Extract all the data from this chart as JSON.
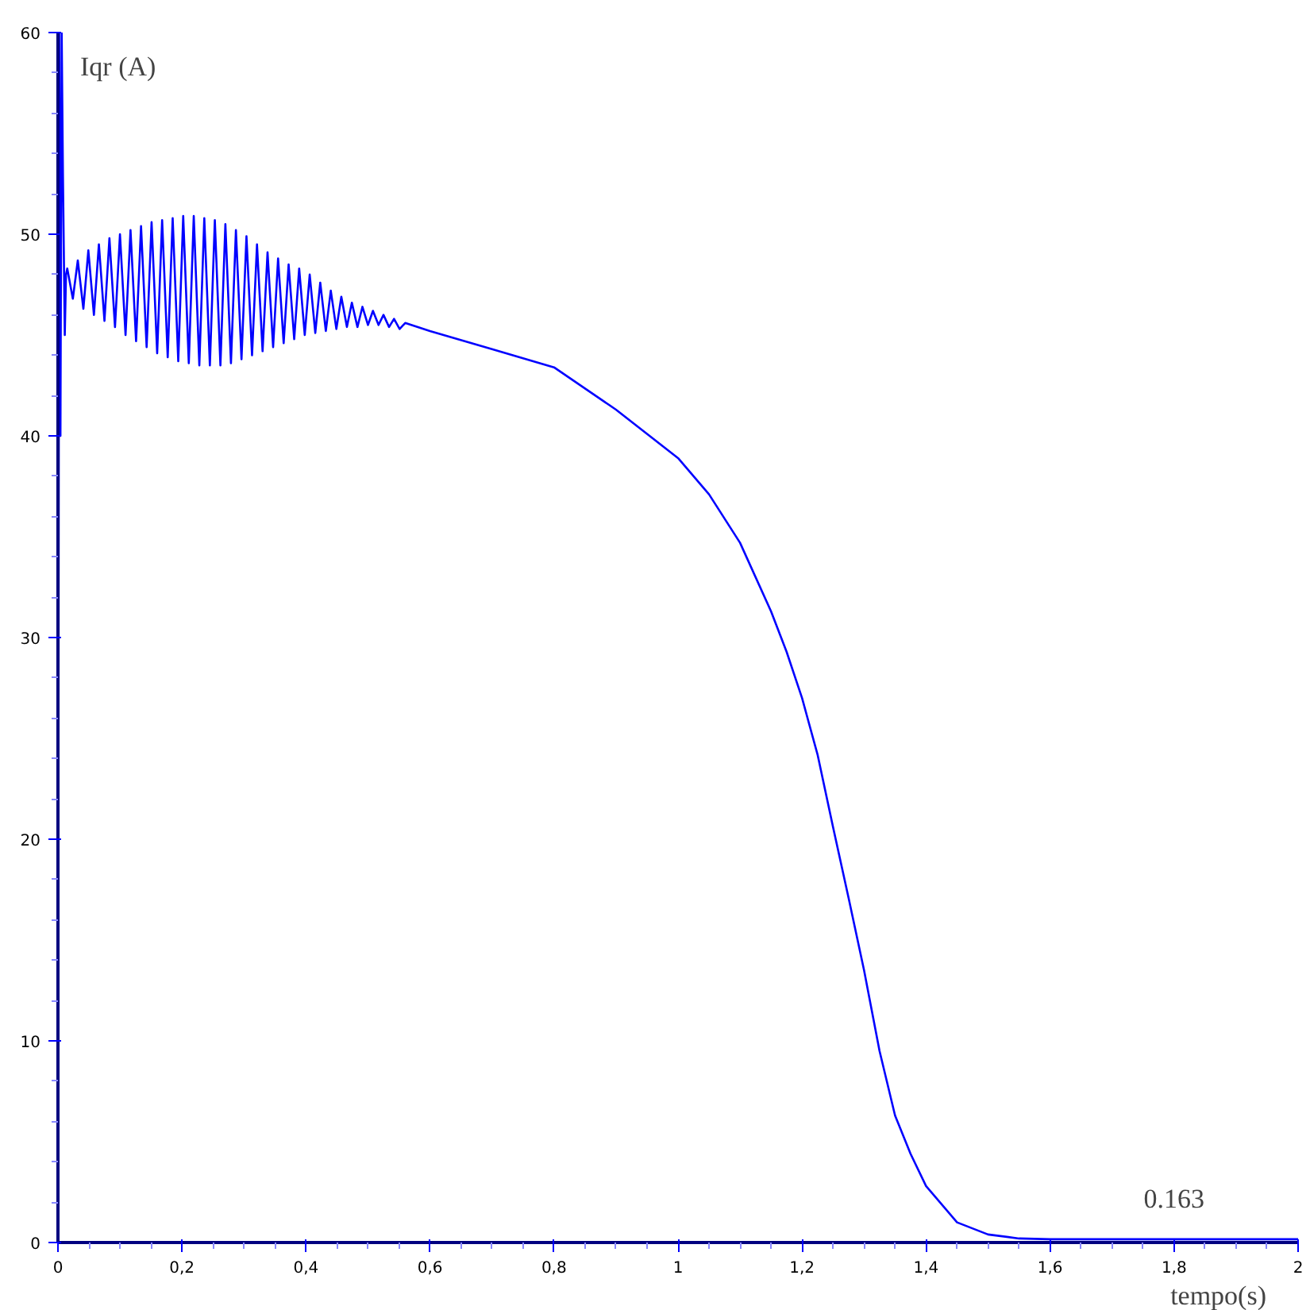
{
  "chart_data": {
    "type": "line",
    "xlabel": "tempo(s)",
    "ylabel": "Iqr (A)",
    "annotations": [
      {
        "text": "0.163",
        "x": 1.8,
        "y": 0.163
      }
    ],
    "xlim": [
      0,
      2
    ],
    "ylim": [
      0,
      60
    ],
    "xticks": [
      0,
      {
        "value": 0.2,
        "label": "0,2"
      },
      {
        "value": 0.4,
        "label": "0,4"
      },
      {
        "value": 0.6,
        "label": "0,6"
      },
      {
        "value": 0.8,
        "label": "0,8"
      },
      1,
      {
        "value": 1.2,
        "label": "1,2"
      },
      {
        "value": 1.4,
        "label": "1,4"
      },
      {
        "value": 1.6,
        "label": "1,6"
      },
      {
        "value": 1.8,
        "label": "1,8"
      },
      2
    ],
    "yticks": [
      0,
      10,
      20,
      30,
      40,
      50,
      60
    ],
    "grid": false,
    "marker": "none",
    "line_style": "solid",
    "series": [
      {
        "color": "#0000ff",
        "x": [
          0,
          0.002,
          0.004,
          0.006,
          0.008,
          0.011,
          0.013,
          0.015,
          0.024,
          0.032,
          0.041,
          0.049,
          0.058,
          0.066,
          0.075,
          0.083,
          0.092,
          0.1,
          0.109,
          0.117,
          0.126,
          0.134,
          0.143,
          0.151,
          0.16,
          0.168,
          0.177,
          0.185,
          0.194,
          0.202,
          0.211,
          0.219,
          0.228,
          0.236,
          0.245,
          0.253,
          0.262,
          0.27,
          0.279,
          0.287,
          0.296,
          0.304,
          0.313,
          0.321,
          0.33,
          0.338,
          0.347,
          0.355,
          0.364,
          0.372,
          0.381,
          0.389,
          0.398,
          0.406,
          0.415,
          0.423,
          0.432,
          0.44,
          0.449,
          0.457,
          0.466,
          0.474,
          0.483,
          0.491,
          0.5,
          0.508,
          0.517,
          0.525,
          0.534,
          0.542,
          0.551,
          0.56,
          0.6,
          0.7,
          0.8,
          0.9,
          0.95,
          1.0,
          1.05,
          1.1,
          1.15,
          1.175,
          1.2,
          1.225,
          1.25,
          1.275,
          1.3,
          1.325,
          1.35,
          1.375,
          1.4,
          1.45,
          1.5,
          1.55,
          1.6,
          1.7,
          1.8,
          1.9,
          2.0
        ],
        "values": [
          0,
          60,
          40,
          60,
          53,
          45,
          48,
          48.3,
          46.8,
          48.7,
          46.3,
          49.2,
          46.0,
          49.5,
          45.7,
          49.8,
          45.4,
          50.0,
          45.0,
          50.2,
          44.7,
          50.4,
          44.4,
          50.6,
          44.1,
          50.7,
          43.9,
          50.8,
          43.7,
          50.9,
          43.6,
          50.9,
          43.5,
          50.8,
          43.5,
          50.7,
          43.5,
          50.5,
          43.6,
          50.2,
          43.8,
          49.9,
          44.0,
          49.5,
          44.2,
          49.1,
          44.4,
          48.8,
          44.6,
          48.5,
          44.8,
          48.3,
          45.0,
          48.0,
          45.1,
          47.6,
          45.2,
          47.2,
          45.3,
          46.9,
          45.4,
          46.6,
          45.4,
          46.4,
          45.5,
          46.2,
          45.5,
          46.0,
          45.4,
          45.8,
          45.3,
          45.6,
          45.2,
          44.3,
          43.4,
          41.3,
          40.1,
          38.9,
          37.1,
          34.7,
          31.3,
          29.3,
          27.0,
          24.2,
          20.6,
          17.1,
          13.5,
          9.5,
          6.3,
          4.4,
          2.8,
          1.0,
          0.4,
          0.2,
          0.163,
          0.163,
          0.163,
          0.163,
          0.163
        ]
      }
    ]
  }
}
